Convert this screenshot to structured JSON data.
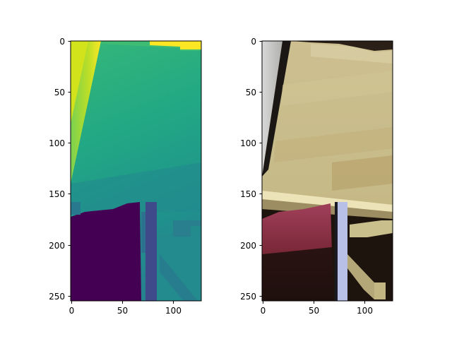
{
  "chart_data": [
    {
      "type": "image",
      "colormap": "viridis",
      "description_text": "",
      "xlim": [
        0,
        127
      ],
      "ylim": [
        255,
        0
      ],
      "x_ticks": [
        0,
        50,
        100
      ],
      "y_ticks": [
        0,
        50,
        100,
        150,
        200,
        250
      ],
      "x_tick_labels": [
        "0",
        "50",
        "100"
      ],
      "y_tick_labels": [
        "0",
        "50",
        "100",
        "150",
        "200",
        "250"
      ]
    },
    {
      "type": "image",
      "colormap": "rgb",
      "xlim": [
        0,
        127
      ],
      "ylim": [
        255,
        0
      ],
      "x_ticks": [
        0,
        50,
        100
      ],
      "y_ticks": [
        0,
        50,
        100,
        150,
        200,
        250
      ],
      "x_tick_labels": [
        "0",
        "50",
        "100"
      ],
      "y_tick_labels": [
        "0",
        "50",
        "100",
        "150",
        "200",
        "250"
      ]
    }
  ],
  "colors": {
    "viridis_purple": "#440154",
    "viridis_blue": "#3b528b",
    "viridis_teal": "#21908d",
    "viridis_green": "#5dc963",
    "viridis_yellow": "#fde725",
    "photo_beige": "#cbc08c",
    "photo_red": "#8e3344",
    "photo_dark": "#1c120c",
    "photo_light": "#b8c0e8"
  }
}
